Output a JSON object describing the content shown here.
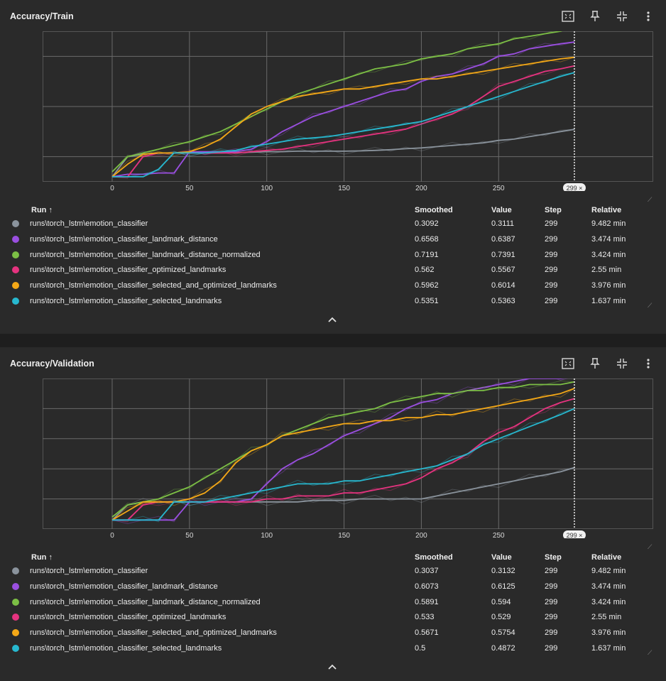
{
  "columns": {
    "run": "Run ↑",
    "smoothed": "Smoothed",
    "value": "Value",
    "step": "Step",
    "relative": "Relative"
  },
  "step_badge": "299 ×",
  "colors": {
    "emotion_classifier": "#8a939c",
    "landmark_distance": "#9a4fe0",
    "landmark_distance_normalized": "#7cbf45",
    "optimized_landmarks": "#e5337f",
    "selected_and_optimized_landmarks": "#f4a817",
    "selected_landmarks": "#27b8cf"
  },
  "toolbar_icons": [
    "fullscreen-icon",
    "pin-icon",
    "collapse-icon",
    "more-vert-icon"
  ],
  "charts": [
    {
      "title": "Accuracy/Train",
      "rows": [
        {
          "run": "runs\\torch_lstm\\emotion_classifier",
          "smoothed": "0.3092",
          "value": "0.3111",
          "step": "299",
          "relative": "9.482 min"
        },
        {
          "run": "runs\\torch_lstm\\emotion_classifier_landmark_distance",
          "smoothed": "0.6568",
          "value": "0.6387",
          "step": "299",
          "relative": "3.474 min"
        },
        {
          "run": "runs\\torch_lstm\\emotion_classifier_landmark_distance_normalized",
          "smoothed": "0.7191",
          "value": "0.7391",
          "step": "299",
          "relative": "3.424 min"
        },
        {
          "run": "runs\\torch_lstm\\emotion_classifier_optimized_landmarks",
          "smoothed": "0.562",
          "value": "0.5567",
          "step": "299",
          "relative": "2.55 min"
        },
        {
          "run": "runs\\torch_lstm\\emotion_classifier_selected_and_optimized_landmarks",
          "smoothed": "0.5962",
          "value": "0.6014",
          "step": "299",
          "relative": "3.976 min"
        },
        {
          "run": "runs\\torch_lstm\\emotion_classifier_selected_landmarks",
          "smoothed": "0.5351",
          "value": "0.5363",
          "step": "299",
          "relative": "1.637 min"
        }
      ]
    },
    {
      "title": "Accuracy/Validation",
      "rows": [
        {
          "run": "runs\\torch_lstm\\emotion_classifier",
          "smoothed": "0.3037",
          "value": "0.3132",
          "step": "299",
          "relative": "9.482 min"
        },
        {
          "run": "runs\\torch_lstm\\emotion_classifier_landmark_distance",
          "smoothed": "0.6073",
          "value": "0.6125",
          "step": "299",
          "relative": "3.474 min"
        },
        {
          "run": "runs\\torch_lstm\\emotion_classifier_landmark_distance_normalized",
          "smoothed": "0.5891",
          "value": "0.594",
          "step": "299",
          "relative": "3.424 min"
        },
        {
          "run": "runs\\torch_lstm\\emotion_classifier_optimized_landmarks",
          "smoothed": "0.533",
          "value": "0.529",
          "step": "299",
          "relative": "2.55 min"
        },
        {
          "run": "runs\\torch_lstm\\emotion_classifier_selected_and_optimized_landmarks",
          "smoothed": "0.5671",
          "value": "0.5754",
          "step": "299",
          "relative": "3.976 min"
        },
        {
          "run": "runs\\torch_lstm\\emotion_classifier_selected_landmarks",
          "smoothed": "0.5",
          "value": "0.4872",
          "step": "299",
          "relative": "1.637 min"
        }
      ]
    }
  ],
  "chart_data": [
    {
      "type": "line",
      "title": "Accuracy/Train",
      "xlim": [
        -45,
        350
      ],
      "ylim": [
        0.1,
        0.7
      ],
      "xticks": [
        0,
        50,
        100,
        150,
        200,
        250
      ],
      "yticks": [
        0.2,
        0.4,
        0.6
      ],
      "grid": true,
      "cursor_x": 299,
      "x": [
        0,
        10,
        20,
        30,
        40,
        50,
        60,
        70,
        80,
        90,
        100,
        110,
        120,
        130,
        140,
        150,
        160,
        170,
        180,
        190,
        200,
        210,
        220,
        230,
        240,
        250,
        260,
        270,
        280,
        290,
        299
      ],
      "series": [
        {
          "name": "runs\\torch_lstm\\emotion_classifier",
          "color": "#8a939c",
          "values": [
            0.12,
            0.2,
            0.21,
            0.215,
            0.215,
            0.215,
            0.215,
            0.215,
            0.216,
            0.218,
            0.22,
            0.22,
            0.222,
            0.222,
            0.222,
            0.222,
            0.223,
            0.225,
            0.228,
            0.232,
            0.235,
            0.24,
            0.245,
            0.25,
            0.255,
            0.265,
            0.27,
            0.28,
            0.29,
            0.3,
            0.309
          ]
        },
        {
          "name": "runs\\torch_lstm\\emotion_classifier_landmark_distance",
          "color": "#9a4fe0",
          "values": [
            0.12,
            0.13,
            0.13,
            0.135,
            0.135,
            0.22,
            0.22,
            0.22,
            0.22,
            0.23,
            0.26,
            0.3,
            0.33,
            0.36,
            0.38,
            0.4,
            0.42,
            0.44,
            0.46,
            0.47,
            0.5,
            0.52,
            0.53,
            0.55,
            0.57,
            0.6,
            0.61,
            0.63,
            0.64,
            0.65,
            0.657
          ]
        },
        {
          "name": "runs\\torch_lstm\\emotion_classifier_landmark_distance_normalized",
          "color": "#7cbf45",
          "values": [
            0.14,
            0.2,
            0.215,
            0.23,
            0.245,
            0.26,
            0.28,
            0.3,
            0.33,
            0.36,
            0.39,
            0.42,
            0.45,
            0.47,
            0.49,
            0.51,
            0.53,
            0.55,
            0.56,
            0.57,
            0.59,
            0.6,
            0.61,
            0.63,
            0.64,
            0.65,
            0.67,
            0.68,
            0.69,
            0.7,
            0.719
          ]
        },
        {
          "name": "runs\\torch_lstm\\emotion_classifier_optimized_landmarks",
          "color": "#e5337f",
          "values": [
            0.12,
            0.12,
            0.2,
            0.215,
            0.215,
            0.215,
            0.215,
            0.215,
            0.215,
            0.22,
            0.225,
            0.23,
            0.24,
            0.25,
            0.26,
            0.27,
            0.28,
            0.29,
            0.3,
            0.31,
            0.33,
            0.35,
            0.37,
            0.4,
            0.44,
            0.48,
            0.5,
            0.52,
            0.54,
            0.55,
            0.562
          ]
        },
        {
          "name": "runs\\torch_lstm\\emotion_classifier_selected_and_optimized_landmarks",
          "color": "#f4a817",
          "values": [
            0.12,
            0.17,
            0.21,
            0.215,
            0.215,
            0.22,
            0.24,
            0.27,
            0.32,
            0.37,
            0.4,
            0.42,
            0.44,
            0.45,
            0.46,
            0.47,
            0.47,
            0.48,
            0.49,
            0.5,
            0.51,
            0.51,
            0.52,
            0.53,
            0.54,
            0.55,
            0.56,
            0.57,
            0.58,
            0.59,
            0.596
          ]
        },
        {
          "name": "runs\\torch_lstm\\emotion_classifier_selected_landmarks",
          "color": "#27b8cf",
          "values": [
            0.12,
            0.12,
            0.12,
            0.15,
            0.215,
            0.215,
            0.215,
            0.22,
            0.225,
            0.24,
            0.25,
            0.26,
            0.27,
            0.275,
            0.28,
            0.29,
            0.3,
            0.31,
            0.32,
            0.33,
            0.34,
            0.36,
            0.38,
            0.4,
            0.42,
            0.44,
            0.46,
            0.48,
            0.5,
            0.52,
            0.535
          ]
        }
      ]
    },
    {
      "type": "line",
      "title": "Accuracy/Validation",
      "xlim": [
        -45,
        350
      ],
      "ylim": [
        0.1,
        0.6
      ],
      "xticks": [
        0,
        50,
        100,
        150,
        200,
        250
      ],
      "yticks": [
        0.2,
        0.3,
        0.4,
        0.5
      ],
      "grid": true,
      "cursor_x": 299,
      "x": [
        0,
        10,
        20,
        30,
        40,
        50,
        60,
        70,
        80,
        90,
        100,
        110,
        120,
        130,
        140,
        150,
        160,
        170,
        180,
        190,
        200,
        210,
        220,
        230,
        240,
        250,
        260,
        270,
        280,
        290,
        299
      ],
      "series": [
        {
          "name": "runs\\torch_lstm\\emotion_classifier",
          "color": "#8a939c",
          "values": [
            0.13,
            0.18,
            0.19,
            0.19,
            0.19,
            0.19,
            0.19,
            0.19,
            0.19,
            0.19,
            0.19,
            0.19,
            0.19,
            0.195,
            0.195,
            0.195,
            0.2,
            0.2,
            0.2,
            0.2,
            0.2,
            0.21,
            0.22,
            0.23,
            0.24,
            0.25,
            0.26,
            0.27,
            0.28,
            0.29,
            0.304
          ]
        },
        {
          "name": "runs\\torch_lstm\\emotion_classifier_landmark_distance",
          "color": "#9a4fe0",
          "values": [
            0.13,
            0.13,
            0.13,
            0.13,
            0.13,
            0.19,
            0.19,
            0.19,
            0.19,
            0.2,
            0.25,
            0.3,
            0.33,
            0.35,
            0.38,
            0.41,
            0.43,
            0.45,
            0.47,
            0.5,
            0.52,
            0.53,
            0.55,
            0.56,
            0.57,
            0.58,
            0.59,
            0.6,
            0.6,
            0.6,
            0.607
          ]
        },
        {
          "name": "runs\\torch_lstm\\emotion_classifier_landmark_distance_normalized",
          "color": "#7cbf45",
          "values": [
            0.14,
            0.18,
            0.19,
            0.2,
            0.22,
            0.24,
            0.27,
            0.3,
            0.33,
            0.36,
            0.38,
            0.41,
            0.43,
            0.45,
            0.47,
            0.48,
            0.49,
            0.5,
            0.52,
            0.53,
            0.54,
            0.55,
            0.55,
            0.56,
            0.56,
            0.57,
            0.57,
            0.58,
            0.58,
            0.58,
            0.589
          ]
        },
        {
          "name": "runs\\torch_lstm\\emotion_classifier_optimized_landmarks",
          "color": "#e5337f",
          "values": [
            0.13,
            0.13,
            0.18,
            0.19,
            0.19,
            0.19,
            0.19,
            0.19,
            0.19,
            0.19,
            0.2,
            0.2,
            0.21,
            0.21,
            0.21,
            0.22,
            0.22,
            0.23,
            0.24,
            0.25,
            0.27,
            0.3,
            0.32,
            0.35,
            0.39,
            0.42,
            0.44,
            0.47,
            0.5,
            0.52,
            0.533
          ]
        },
        {
          "name": "runs\\torch_lstm\\emotion_classifier_selected_and_optimized_landmarks",
          "color": "#f4a817",
          "values": [
            0.13,
            0.16,
            0.19,
            0.19,
            0.19,
            0.2,
            0.22,
            0.26,
            0.32,
            0.36,
            0.38,
            0.41,
            0.42,
            0.43,
            0.44,
            0.45,
            0.45,
            0.46,
            0.46,
            0.47,
            0.47,
            0.48,
            0.48,
            0.49,
            0.5,
            0.51,
            0.52,
            0.53,
            0.54,
            0.55,
            0.567
          ]
        },
        {
          "name": "runs\\torch_lstm\\emotion_classifier_selected_landmarks",
          "color": "#27b8cf",
          "values": [
            0.13,
            0.13,
            0.13,
            0.13,
            0.19,
            0.19,
            0.19,
            0.2,
            0.21,
            0.22,
            0.23,
            0.24,
            0.25,
            0.25,
            0.25,
            0.26,
            0.26,
            0.27,
            0.28,
            0.29,
            0.3,
            0.31,
            0.33,
            0.35,
            0.38,
            0.4,
            0.42,
            0.44,
            0.46,
            0.48,
            0.5
          ]
        }
      ]
    }
  ]
}
